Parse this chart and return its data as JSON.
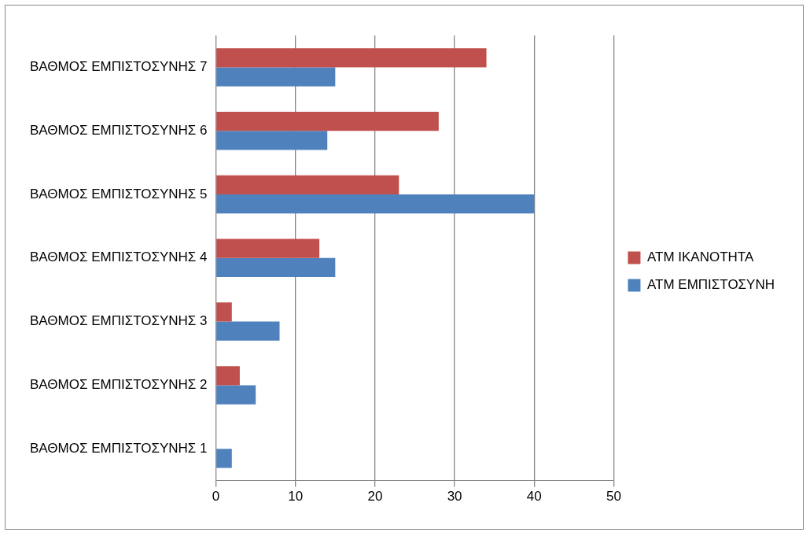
{
  "chart_data": {
    "type": "bar",
    "orientation": "horizontal",
    "categories": [
      "ΒΑΘΜΟΣ ΕΜΠΙΣΤΟΣΥΝΗΣ 7",
      "ΒΑΘΜΟΣ ΕΜΠΙΣΤΟΣΥΝΗΣ 6",
      "ΒΑΘΜΟΣ ΕΜΠΙΣΤΟΣΥΝΗΣ 5",
      "ΒΑΘΜΟΣ ΕΜΠΙΣΤΟΣΥΝΗΣ 4",
      "ΒΑΘΜΟΣ ΕΜΠΙΣΤΟΣΥΝΗΣ 3",
      "ΒΑΘΜΟΣ ΕΜΠΙΣΤΟΣΥΝΗΣ 2",
      "ΒΑΘΜΟΣ ΕΜΠΙΣΤΟΣΥΝΗΣ 1"
    ],
    "series": [
      {
        "name": "ΑΤΜ ΙΚΑΝΟΤΗΤΑ",
        "color": "#c0504d",
        "values": [
          34,
          28,
          23,
          13,
          2,
          3,
          0
        ]
      },
      {
        "name": "ΑΤΜ ΕΜΠΙΣΤΟΣΥΝΗ",
        "color": "#4f81bd",
        "values": [
          15,
          14,
          40,
          15,
          8,
          5,
          2
        ]
      }
    ],
    "xlim": [
      0,
      50
    ],
    "xticks": [
      0,
      10,
      20,
      30,
      40,
      50
    ],
    "grid": "x",
    "legend": "right"
  }
}
